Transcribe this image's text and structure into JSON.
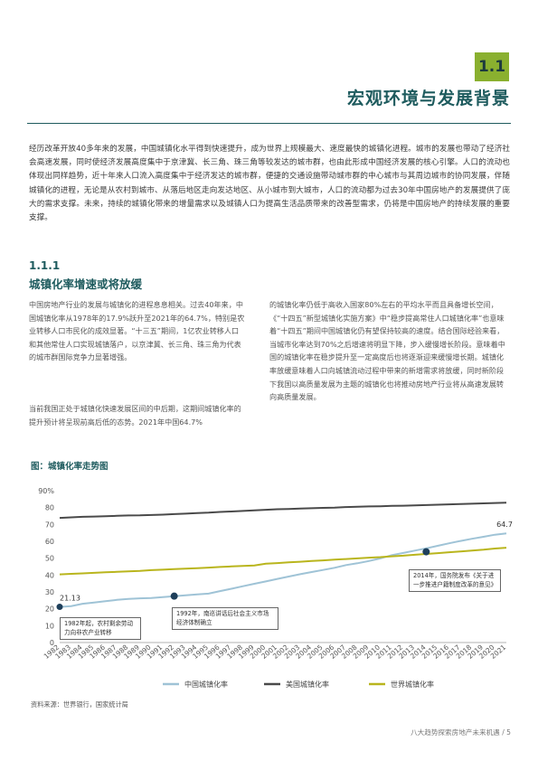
{
  "section": {
    "number": "1.1",
    "title": "宏观环境与发展背景"
  },
  "intro": "经历改革开放40多年来的发展，中国城镇化水平得到快速提升，成为世界上规模最大、速度最快的城镇化进程。城市的发展也带动了经济社会高速发展，同时使经济发展高度集中于京津冀、长三角、珠三角等较发达的城市群，也由此形成中国经济发展的核心引擎。人口的流动也体现出同样趋势，近十年来人口流入高度集中于经济发达的城市群，便捷的交通设施带动城市群的中心城市与其周边城市的协同发展，伴随城镇化的进程，无论是从农村到城市、从落后地区走向发达地区、从小城市到大城市，人口的流动都为过去30年中国房地产的发展提供了庞大的需求支撑。未来，持续的城镇化带来的增量需求以及城镇人口为提高生活品质带来的改善型需求，仍将是中国房地产的持续发展的重要支撑。",
  "subsection": {
    "number": "1.1.1",
    "title": "城镇化率增速或将放缓"
  },
  "col1_p1": "中国房地产行业的发展与城镇化的进程息息相关。过去40年来，中国城镇化率从1978年的17.9%跃升至2021年的64.7%，特别是农业转移人口市民化的成效显著。“十三五”期间，1亿农业转移人口和其他常住人口实现城镇落户，以京津冀、长三角、珠三角为代表的城市群国际竞争力显著增强。",
  "col1_p2": "当前我国正处于城镇化快速发展区间的中后期，这期间城镇化率的提升预计将呈现前高后低的态势。2021年中国64.7%",
  "col2_p1": "的城镇化率仍低于高收入国家80%左右的平均水平而且具备增长空间，《“十四五”新型城镇化实施方案》中“稳步提高常住人口城镇化率”也意味着“十四五”期间中国城镇化仍有望保持较高的速度。结合国际经验来看，当城市化率达到70%之后增速将明显下降，步入缓慢增长阶段。意味着中国的城镇化率在稳步提升至一定高度后也将逐渐迎来缓慢增长期。城镇化率放缓意味着人口向城镇流动过程中带来的新增需求将放缓，同时新阶段下我国以高质量发展为主题的城镇化也将推动房地产行业将从高速发展转向高质量发展。",
  "figure_title": "图：城镇化率走势图",
  "source": "资料来源：世界银行，国家统计局",
  "footer": "八大趋势探索房地产未来机遇 /   5",
  "chart_data": {
    "type": "line",
    "x": [
      1982,
      1983,
      1984,
      1985,
      1986,
      1987,
      1988,
      1989,
      1990,
      1991,
      1992,
      1993,
      1994,
      1995,
      1996,
      1997,
      1998,
      1999,
      2000,
      2001,
      2002,
      2003,
      2004,
      2005,
      2006,
      2007,
      2008,
      2009,
      2010,
      2011,
      2012,
      2013,
      2014,
      2015,
      2016,
      2017,
      2018,
      2019,
      2020,
      2021
    ],
    "ylim": [
      0,
      90
    ],
    "yticks": [
      0,
      10,
      20,
      30,
      40,
      50,
      60,
      70,
      80,
      90
    ],
    "ytick_labels": [
      "0",
      "10",
      "20",
      "30",
      "40",
      "50",
      "60",
      "70",
      "80",
      "90%"
    ],
    "grid": false,
    "legend_position": "bottom",
    "series": [
      {
        "name": "中国城镇化率",
        "color": "#9fc3d6",
        "values": [
          21.13,
          21.6,
          23.0,
          23.7,
          24.5,
          25.3,
          25.8,
          26.2,
          26.4,
          26.9,
          27.5,
          28.0,
          28.5,
          29.0,
          30.5,
          31.9,
          33.4,
          34.8,
          36.2,
          37.7,
          39.1,
          40.5,
          41.8,
          43.0,
          44.3,
          45.9,
          47.0,
          48.3,
          49.9,
          51.8,
          53.1,
          54.5,
          55.8,
          57.3,
          58.8,
          60.2,
          61.5,
          62.7,
          63.9,
          64.7
        ]
      },
      {
        "name": "美国城镇化率",
        "color": "#4a4a4a",
        "values": [
          73.9,
          74.2,
          74.5,
          74.7,
          74.9,
          75.1,
          75.3,
          75.4,
          75.6,
          75.8,
          76.1,
          76.4,
          76.7,
          77.0,
          77.4,
          77.7,
          78.0,
          78.4,
          78.7,
          79.0,
          79.2,
          79.4,
          79.6,
          79.8,
          80.0,
          80.3,
          80.5,
          80.7,
          80.8,
          81.0,
          81.1,
          81.3,
          81.5,
          81.7,
          81.9,
          82.1,
          82.3,
          82.5,
          82.7,
          82.9
        ]
      },
      {
        "name": "世界城镇化率",
        "color": "#b9b51d",
        "values": [
          40.4,
          40.7,
          41.0,
          41.3,
          41.6,
          41.9,
          42.2,
          42.5,
          42.9,
          43.2,
          43.5,
          43.8,
          44.1,
          44.4,
          44.8,
          45.1,
          45.4,
          45.7,
          46.7,
          47.1,
          47.5,
          47.9,
          48.3,
          48.7,
          49.1,
          49.5,
          49.9,
          50.3,
          50.6,
          51.1,
          51.5,
          52.0,
          52.5,
          53.0,
          53.5,
          54.0,
          54.5,
          55.0,
          55.7,
          56.2
        ]
      }
    ],
    "data_labels": [
      {
        "year": 1982,
        "text": "21.13"
      },
      {
        "year": 2021,
        "text": "64.7"
      }
    ],
    "annotations": [
      {
        "year": 1992,
        "value": 27.5,
        "text": "1992年，南巡讲话后社会主义市场经济体制确立"
      },
      {
        "year": 2014,
        "value": 53.8,
        "text": "2014年，国务院发布《关于进一步推进户籍制度改革的意见》"
      }
    ],
    "first_annotation": {
      "year": 1982,
      "text": "1982年起，农村剩余劳动力向非农产业转移"
    }
  },
  "colors": {
    "accent": "#8ab02f",
    "heading": "#1e5b5e"
  }
}
